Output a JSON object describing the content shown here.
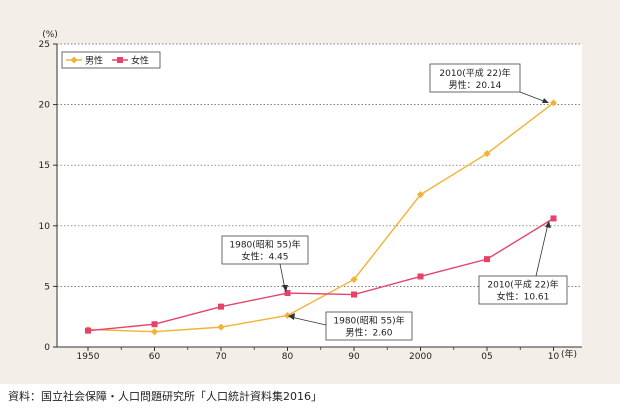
{
  "chart_data": {
    "type": "line",
    "y_unit": "(%)",
    "x_unit": "(年)",
    "categories": [
      "1950",
      "60",
      "70",
      "80",
      "90",
      "2000",
      "05",
      "10"
    ],
    "ylim": [
      0,
      25
    ],
    "yticks": [
      0,
      5,
      10,
      15,
      20,
      25
    ],
    "grid": "horizontal dotted",
    "legend_placement": "top-left",
    "series": [
      {
        "name": "男性",
        "values": [
          1.45,
          1.26,
          1.64,
          2.6,
          5.57,
          12.57,
          15.96,
          20.14
        ],
        "color": "#f2b233",
        "marker": "diamond"
      },
      {
        "name": "女性",
        "values": [
          1.35,
          1.88,
          3.33,
          4.45,
          4.33,
          5.82,
          7.25,
          10.61
        ],
        "color": "#e5436a",
        "marker": "square"
      }
    ],
    "annotations": [
      {
        "line1": "2010(平成 22)年",
        "line2": "男性：20.14"
      },
      {
        "line1": "1980(昭和 55)年",
        "line2": "女性：4.45"
      },
      {
        "line1": "1980(昭和 55)年",
        "line2": "男性：2.60"
      },
      {
        "line1": "2010(平成 22)年",
        "line2": "女性：10.61"
      }
    ]
  },
  "source": "資料：国立社会保障・人口問題研究所「人口統計資料集2016」"
}
